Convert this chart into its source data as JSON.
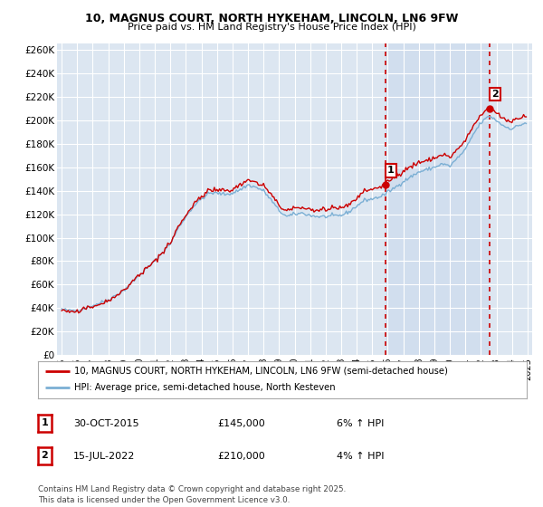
{
  "title": "10, MAGNUS COURT, NORTH HYKEHAM, LINCOLN, LN6 9FW",
  "subtitle": "Price paid vs. HM Land Registry's House Price Index (HPI)",
  "ylabel_ticks": [
    "£0",
    "£20K",
    "£40K",
    "£60K",
    "£80K",
    "£100K",
    "£120K",
    "£140K",
    "£160K",
    "£180K",
    "£200K",
    "£220K",
    "£240K",
    "£260K"
  ],
  "ytick_vals": [
    0,
    20000,
    40000,
    60000,
    80000,
    100000,
    120000,
    140000,
    160000,
    180000,
    200000,
    220000,
    240000,
    260000
  ],
  "ylim": [
    0,
    266000
  ],
  "xlim_years": [
    1994.7,
    2025.3
  ],
  "xtick_years": [
    1995,
    1996,
    1997,
    1998,
    1999,
    2000,
    2001,
    2002,
    2003,
    2004,
    2005,
    2006,
    2007,
    2008,
    2009,
    2010,
    2011,
    2012,
    2013,
    2014,
    2015,
    2016,
    2017,
    2018,
    2019,
    2020,
    2021,
    2022,
    2023,
    2024,
    2025
  ],
  "plot_bg_color": "#dce6f1",
  "plot_bg_color_highlighted": "#ccdaee",
  "line1_color": "#cc0000",
  "line2_color": "#7bafd4",
  "grid_color": "#ffffff",
  "vline_color": "#cc0000",
  "ann1_year": 2015.83,
  "ann1_value": 145000,
  "ann2_year": 2022.54,
  "ann2_value": 210000,
  "legend1": "10, MAGNUS COURT, NORTH HYKEHAM, LINCOLN, LN6 9FW (semi-detached house)",
  "legend2": "HPI: Average price, semi-detached house, North Kesteven",
  "footer": "Contains HM Land Registry data © Crown copyright and database right 2025.\nThis data is licensed under the Open Government Licence v3.0.",
  "table_row1": {
    "num": "1",
    "date": "30-OCT-2015",
    "price": "£145,000",
    "hpi": "6% ↑ HPI"
  },
  "table_row2": {
    "num": "2",
    "date": "15-JUL-2022",
    "price": "£210,000",
    "hpi": "4% ↑ HPI"
  }
}
